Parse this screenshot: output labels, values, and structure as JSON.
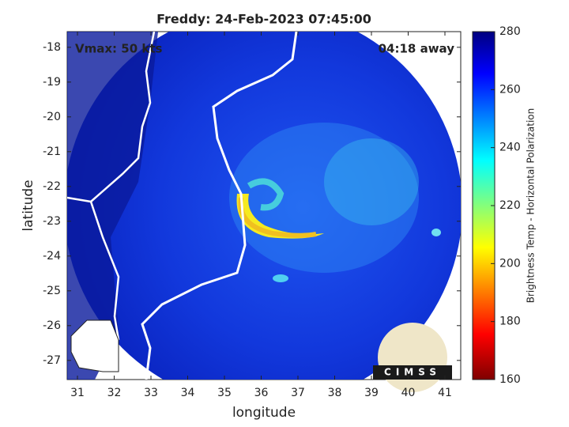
{
  "title": "Freddy: 24-Feb-2023 07:45:00",
  "annotations": {
    "left": "Vmax: 50 kts",
    "right": "04:18 away"
  },
  "axes": {
    "xlabel": "longitude",
    "ylabel": "latitude",
    "xlim": [
      30.72,
      41.43
    ],
    "ylim": [
      -27.55,
      -17.55
    ],
    "xticks": [
      31,
      32,
      33,
      34,
      35,
      36,
      37,
      38,
      39,
      40,
      41
    ],
    "yticks": [
      -18,
      -19,
      -20,
      -21,
      -22,
      -23,
      -24,
      -25,
      -26,
      -27
    ]
  },
  "colorbar": {
    "label": "Brightness Temp - Horizontal Polarization",
    "lim": [
      160,
      280
    ],
    "ticks": [
      160,
      180,
      200,
      220,
      240,
      260,
      280
    ]
  },
  "logo": "CIMSS"
}
